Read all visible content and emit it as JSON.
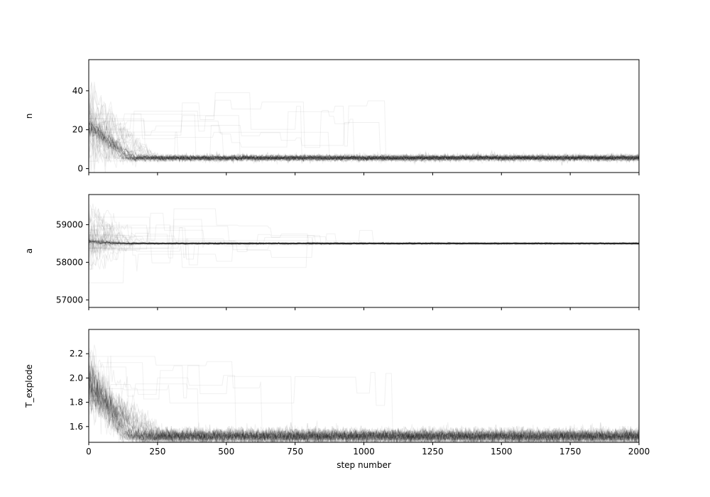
{
  "chart_data": [
    {
      "type": "line",
      "ylabel": "n",
      "xlim": [
        0,
        2000
      ],
      "ylim": [
        -2,
        56
      ],
      "yticks": [
        0,
        20,
        40
      ],
      "xticks": [
        0,
        250,
        500,
        750,
        1000,
        1250,
        1500,
        1750,
        2000
      ],
      "show_xticklabels": false,
      "grid": false,
      "legend": "none",
      "line_color": "#000000",
      "line_opacity": 0.05,
      "burn_in": {
        "start_center": 22,
        "start_spread": 14,
        "end_step": 190,
        "converged_center": 5.5,
        "converged_spread": 0.8
      },
      "walkers": 40
    },
    {
      "type": "line",
      "ylabel": "a",
      "xlim": [
        0,
        2000
      ],
      "ylim": [
        56800,
        59800
      ],
      "yticks": [
        57000,
        58000,
        59000
      ],
      "xticks": [
        0,
        250,
        500,
        750,
        1000,
        1250,
        1500,
        1750,
        2000
      ],
      "show_xticklabels": false,
      "grid": false,
      "legend": "none",
      "line_color": "#000000",
      "line_opacity": 0.05,
      "burn_in": {
        "start_center": 58550,
        "start_spread": 700,
        "end_step": 150,
        "converged_center": 58500,
        "converged_spread": 12
      },
      "walkers": 40
    },
    {
      "type": "line",
      "ylabel": "T_explode",
      "xlabel": "step number",
      "xlim": [
        0,
        2000
      ],
      "ylim": [
        1.47,
        2.4
      ],
      "yticks": [
        1.6,
        1.8,
        2.0,
        2.2
      ],
      "ytick_labels": [
        "1.6",
        "1.8",
        "2.0",
        "2.2"
      ],
      "xticks": [
        0,
        250,
        500,
        750,
        1000,
        1250,
        1500,
        1750,
        2000
      ],
      "xtick_labels": [
        "0",
        "250",
        "500",
        "750",
        "1000",
        "1250",
        "1500",
        "1750",
        "2000"
      ],
      "show_xticklabels": true,
      "grid": false,
      "legend": "none",
      "line_color": "#000000",
      "line_opacity": 0.05,
      "burn_in": {
        "start_center": 1.97,
        "start_spread": 0.18,
        "end_step": 210,
        "converged_center": 1.52,
        "converged_spread": 0.03
      },
      "walkers": 40
    }
  ]
}
